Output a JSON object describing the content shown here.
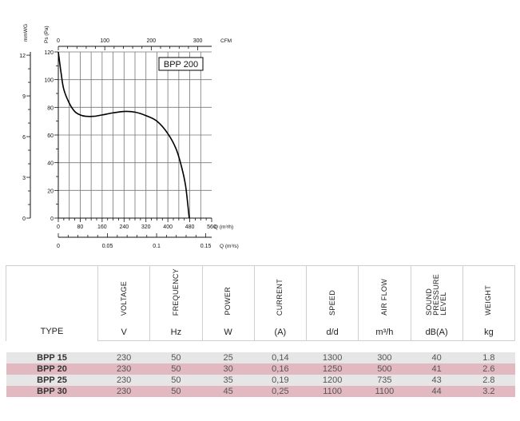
{
  "chart_data": {
    "type": "line",
    "title": "BPP 200",
    "series": [
      {
        "x": [
          0,
          10,
          20,
          40,
          60,
          80,
          100,
          130,
          160,
          200,
          240,
          280,
          320,
          360,
          400,
          430,
          450,
          465,
          478
        ],
        "y": [
          120,
          105,
          93,
          83,
          77,
          74.5,
          73.5,
          73.5,
          74.5,
          76,
          77,
          76.5,
          74,
          70,
          61,
          50,
          37,
          23,
          0
        ]
      }
    ],
    "x_axis": {
      "unit_label": "Q (m³/h)",
      "ticks": [
        "0",
        "80",
        "160",
        "240",
        "320",
        "400",
        "480",
        "560"
      ],
      "range": [
        0,
        560
      ]
    },
    "y_axis": {
      "unit_label": "Ps (Pa)",
      "ticks": [
        "0",
        "20",
        "40",
        "60",
        "80",
        "100",
        "120"
      ],
      "range": [
        0,
        120
      ]
    },
    "top_axis": {
      "unit_label": "CFM",
      "ticks": [
        "0",
        "100",
        "200",
        "300"
      ],
      "range": [
        0,
        330
      ]
    },
    "bottom_axis": {
      "unit_label": "Q (m³/s)",
      "ticks": [
        "0",
        "0.05",
        "0.1",
        "0.15"
      ],
      "range": [
        0,
        0.156
      ]
    },
    "left_axis": {
      "unit_label": "mmWG",
      "ticks": [
        "0",
        "3",
        "6",
        "9",
        "12"
      ],
      "range": [
        0,
        12.24
      ]
    },
    "grid": true
  },
  "table": {
    "columns": [
      {
        "label": "TYPE",
        "unit": ""
      },
      {
        "label": "VOLTAGE",
        "unit": "V"
      },
      {
        "label": "FREQUENCY",
        "unit": "Hz"
      },
      {
        "label": "POWER",
        "unit": "W"
      },
      {
        "label": "CURRENT",
        "unit": "(A)"
      },
      {
        "label": "SPEED",
        "unit": "d/d"
      },
      {
        "label": "AIR FLOW",
        "unit": "m³/h"
      },
      {
        "label": "SOUND\nPRESSURE\nLEVEL",
        "unit": "dB(A)"
      },
      {
        "label": "WEIGHT",
        "unit": "kg"
      }
    ],
    "rows": [
      [
        "BPP 15",
        "230",
        "50",
        "25",
        "0,14",
        "1300",
        "300",
        "40",
        "1.8"
      ],
      [
        "BPP 20",
        "230",
        "50",
        "30",
        "0,16",
        "1250",
        "500",
        "41",
        "2.6"
      ],
      [
        "BPP 25",
        "230",
        "50",
        "35",
        "0,19",
        "1200",
        "735",
        "43",
        "2.8"
      ],
      [
        "BPP 30",
        "230",
        "50",
        "45",
        "0,25",
        "1100",
        "1100",
        "44",
        "3.2"
      ]
    ]
  }
}
